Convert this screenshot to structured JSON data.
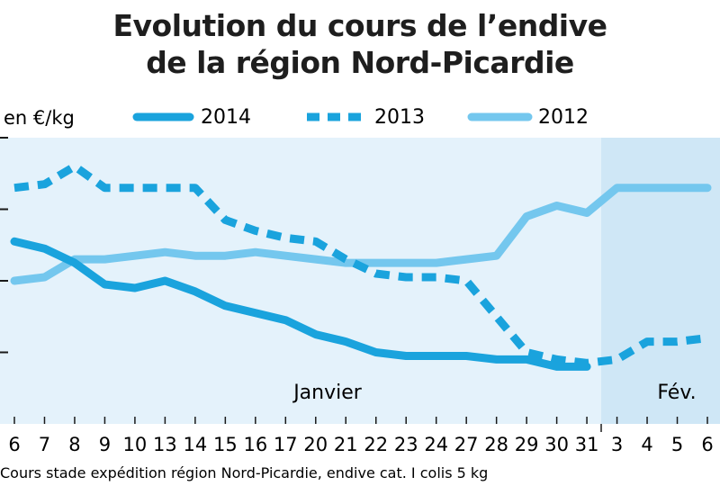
{
  "chart_data": {
    "type": "line",
    "title_line1": "Evolution du cours de l’endive",
    "title_line2": "de la région Nord-Picardie",
    "ylabel": "en €/kg",
    "ylim": [
      0,
      4
    ],
    "grid": false,
    "legend_placement": "top",
    "categories": [
      "6",
      "7",
      "8",
      "9",
      "10",
      "13",
      "14",
      "15",
      "16",
      "17",
      "20",
      "21",
      "22",
      "23",
      "24",
      "27",
      "28",
      "29",
      "30",
      "31",
      "3",
      "4",
      "5",
      "6"
    ],
    "period_labels": [
      "Janvier",
      "Fév."
    ],
    "note": "Cours stade expédition région Nord-Picardie, endive cat. I colis 5 kg",
    "colors": {
      "band": "#e4f2fb",
      "band_dark": "#cfe7f6",
      "s2014": "#1aa3dd",
      "s2013": "#1aa3dd",
      "s2012": "#74c7ee"
    },
    "series": [
      {
        "name": "2014",
        "style": "solid",
        "values": [
          2.55,
          2.45,
          2.25,
          1.95,
          1.9,
          2.0,
          1.85,
          1.65,
          1.55,
          1.45,
          1.25,
          1.15,
          1.0,
          0.95,
          0.95,
          0.95,
          0.9,
          0.9,
          0.8,
          0.8,
          null,
          null,
          null,
          null
        ]
      },
      {
        "name": "2013",
        "style": "dashed",
        "values": [
          3.3,
          3.35,
          3.6,
          3.3,
          3.3,
          3.3,
          3.3,
          2.85,
          2.7,
          2.6,
          2.55,
          2.3,
          2.1,
          2.05,
          2.05,
          2.0,
          1.5,
          1.0,
          0.9,
          0.85,
          0.9,
          1.15,
          1.15,
          1.2
        ]
      },
      {
        "name": "2012",
        "style": "solid-light",
        "values": [
          2.0,
          2.05,
          2.3,
          2.3,
          2.35,
          2.4,
          2.35,
          2.35,
          2.4,
          2.35,
          2.3,
          2.25,
          2.25,
          2.25,
          2.25,
          2.3,
          2.35,
          2.9,
          3.05,
          2.95,
          3.3,
          3.3,
          3.3,
          3.3
        ]
      }
    ]
  }
}
